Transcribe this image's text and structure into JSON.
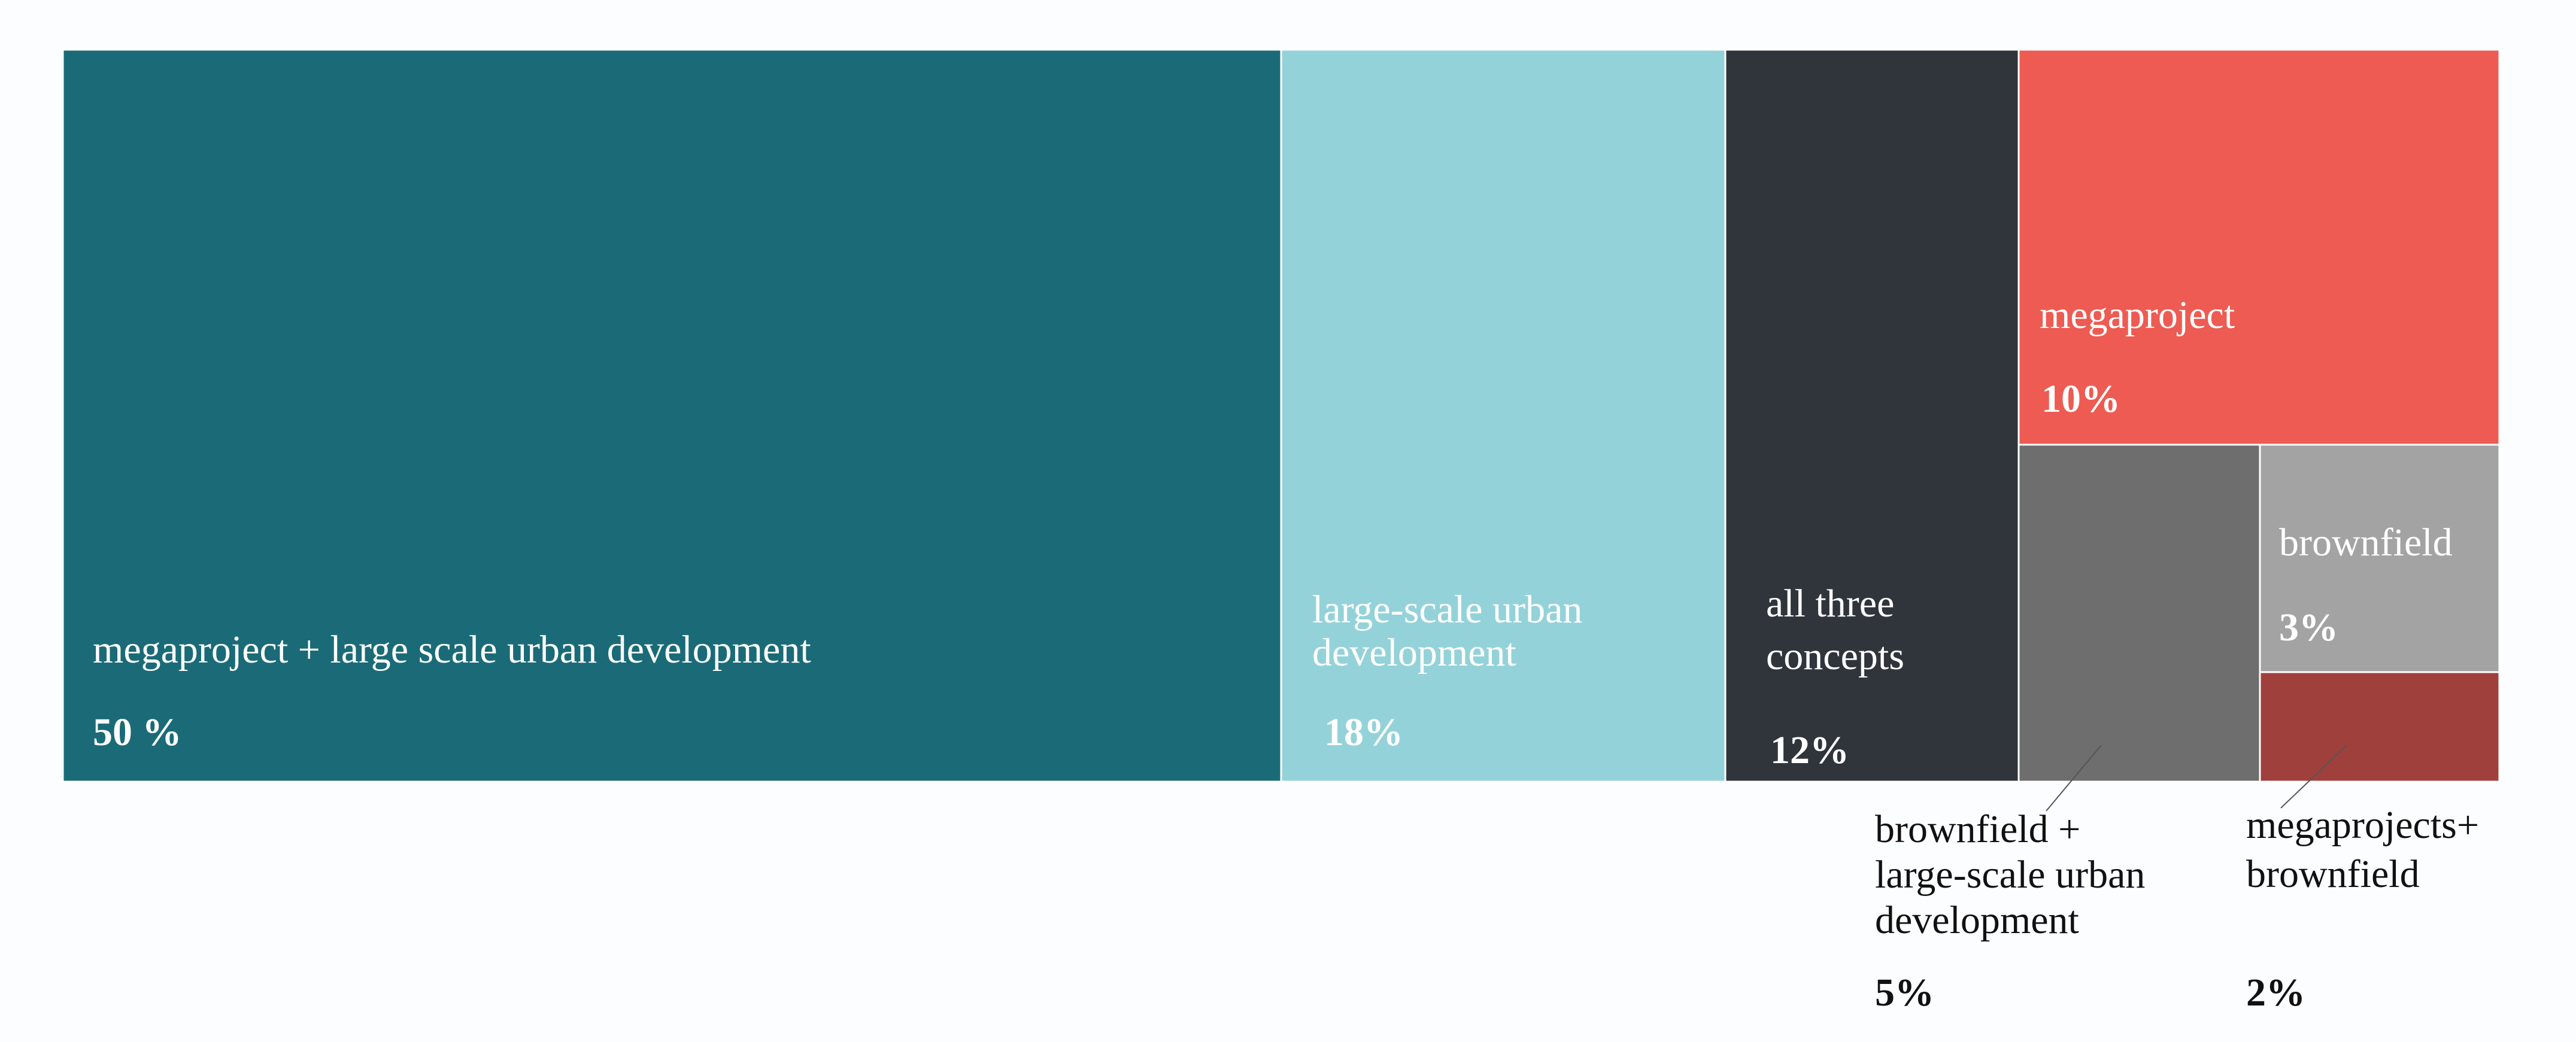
{
  "chart_data": {
    "type": "treemap",
    "title": "",
    "items": [
      {
        "name": "megaproject + large scale urban development",
        "lines": [
          "megaproject + large scale urban development"
        ],
        "value_label": "50 %",
        "value": 50,
        "color": "#1a6b77",
        "text_color": "#ffffff"
      },
      {
        "name": "large-scale urban development",
        "lines": [
          "large-scale urban",
          "development"
        ],
        "value_label": "18%",
        "value": 18,
        "color": "#94d2d9",
        "text_color": "#ffffff"
      },
      {
        "name": "all three concepts",
        "lines": [
          "all three",
          "concepts"
        ],
        "value_label": "12%",
        "value": 12,
        "color": "#30343b",
        "text_color": "#ffffff"
      },
      {
        "name": "megaproject",
        "lines": [
          "megaproject"
        ],
        "value_label": "10%",
        "value": 10,
        "color": "#ee5b52",
        "text_color": "#ffffff"
      },
      {
        "name": "brownfield",
        "lines": [
          "brownfield"
        ],
        "value_label": "3%",
        "value": 3,
        "color": "#a3a3a3",
        "text_color": "#ffffff"
      },
      {
        "name": "brownfield + large-scale urban development",
        "lines": [
          "brownfield +",
          "large-scale urban",
          "development"
        ],
        "value_label": "5%",
        "value": 5,
        "color": "#6e6e6e",
        "text_color": "#111111"
      },
      {
        "name": "megaprojects+ brownfield",
        "lines": [
          "megaprojects+",
          "brownfield"
        ],
        "value_label": "2%",
        "value": 2,
        "color": "#a0403c",
        "text_color": "#111111"
      }
    ]
  }
}
